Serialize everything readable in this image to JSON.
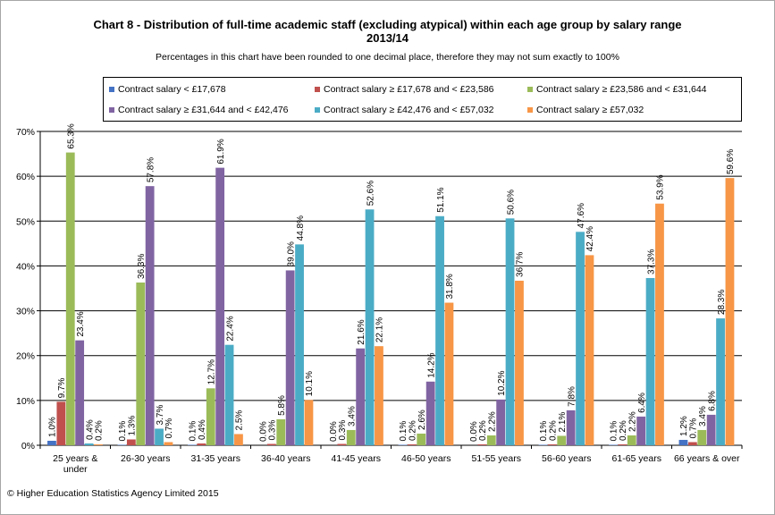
{
  "chart_data": {
    "type": "bar",
    "title": "Chart 8 - Distribution of full-time academic staff (excluding atypical) within each age group by salary range",
    "title_line2": "2013/14",
    "subtitle": "Percentages in this chart have been rounded to one decimal place, therefore they may not sum exactly to 100%",
    "footer": "© Higher Education Statistics Agency Limited 2015",
    "categories": [
      "25 years & under",
      "26-30 years",
      "31-35 years",
      "36-40 years",
      "41-45 years",
      "46-50 years",
      "51-55 years",
      "56-60 years",
      "61-65 years",
      "66 years & over"
    ],
    "category_lines": [
      [
        "25 years &",
        "under"
      ],
      [
        "26-30 years"
      ],
      [
        "31-35 years"
      ],
      [
        "36-40 years"
      ],
      [
        "41-45 years"
      ],
      [
        "46-50 years"
      ],
      [
        "51-55 years"
      ],
      [
        "56-60 years"
      ],
      [
        "61-65 years"
      ],
      [
        "66 years & over"
      ]
    ],
    "ylim": [
      0,
      70
    ],
    "yticks": [
      0,
      10,
      20,
      30,
      40,
      50,
      60,
      70
    ],
    "ytick_labels": [
      "0%",
      "10%",
      "20%",
      "30%",
      "40%",
      "50%",
      "60%",
      "70%"
    ],
    "grid": true,
    "legend_position": "top",
    "series": [
      {
        "name": "Contract salary < £17,678",
        "color": "#4472c4",
        "values": [
          1.0,
          0.1,
          0.1,
          0.0,
          0.0,
          0.1,
          0.0,
          0.1,
          0.1,
          1.2
        ],
        "labels": [
          "1.0%",
          "0.1%",
          "0.1%",
          "0.0%",
          "0.0%",
          "0.1%",
          "0.0%",
          "0.1%",
          "0.1%",
          "1.2%"
        ]
      },
      {
        "name": "Contract salary ≥ £17,678 and < £23,586",
        "color": "#c0504d",
        "values": [
          9.7,
          1.3,
          0.4,
          0.3,
          0.3,
          0.2,
          0.2,
          0.2,
          0.2,
          0.7
        ],
        "labels": [
          "9.7%",
          "1.3%",
          "0.4%",
          "0.3%",
          "0.3%",
          "0.2%",
          "0.2%",
          "0.2%",
          "0.2%",
          "0.7%"
        ]
      },
      {
        "name": "Contract salary ≥ £23,586 and < £31,644",
        "color": "#9bbb59",
        "values": [
          65.3,
          36.3,
          12.7,
          5.8,
          3.4,
          2.6,
          2.2,
          2.1,
          2.2,
          3.4
        ],
        "labels": [
          "65.3%",
          "36.3%",
          "12.7%",
          "5.8%",
          "3.4%",
          "2.6%",
          "2.2%",
          "2.1%",
          "2.2%",
          "3.4%"
        ]
      },
      {
        "name": "Contract salary ≥ £31,644 and < £42,476",
        "color": "#8064a2",
        "values": [
          23.4,
          57.8,
          61.9,
          39.0,
          21.6,
          14.2,
          10.2,
          7.8,
          6.4,
          6.8
        ],
        "labels": [
          "23.4%",
          "57.8%",
          "61.9%",
          "39.0%",
          "21.6%",
          "14.2%",
          "10.2%",
          "7.8%",
          "6.4%",
          "6.8%"
        ]
      },
      {
        "name": "Contract salary ≥ £42,476 and < £57,032",
        "color": "#4bacc6",
        "values": [
          0.4,
          3.7,
          22.4,
          44.8,
          52.6,
          51.1,
          50.6,
          47.6,
          37.3,
          28.3
        ],
        "labels": [
          "0.4%",
          "3.7%",
          "22.4%",
          "44.8%",
          "52.6%",
          "51.1%",
          "50.6%",
          "47.6%",
          "37.3%",
          "28.3%"
        ]
      },
      {
        "name": "Contract salary ≥ £57,032",
        "color": "#f79646",
        "values": [
          0.2,
          0.7,
          2.5,
          10.1,
          22.1,
          31.8,
          36.7,
          42.4,
          53.9,
          59.6
        ],
        "labels": [
          "0.2%",
          "0.7%",
          "2.5%",
          "10.1%",
          "22.1%",
          "31.8%",
          "36.7%",
          "42.4%",
          "53.9%",
          "59.6%"
        ]
      }
    ]
  }
}
